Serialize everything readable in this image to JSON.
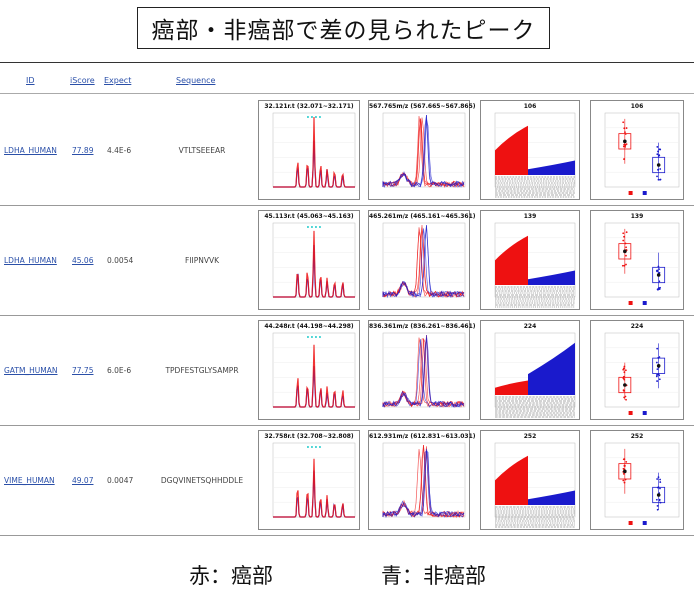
{
  "title": "癌部・非癌部で差の見られたピーク",
  "table": {
    "headers": {
      "id": "ID",
      "score": "iScore",
      "expect": "Expect",
      "sequence": "Sequence"
    }
  },
  "rows": [
    {
      "protein": "LDHA_HUMAN",
      "score": "77.89",
      "expect": "4.4E-6",
      "sequence": "VTLTSEEEAR",
      "panel_titles": [
        "32.121r.t (32.071~32.171)",
        "567.765m/z (567.665~567.865)",
        "106",
        "106"
      ]
    },
    {
      "protein": "LDHA_HUMAN",
      "score": "45.06",
      "expect": "0.0054",
      "sequence": "FIIPNVVK",
      "panel_titles": [
        "45.113r.t (45.063~45.163)",
        "465.261m/z (465.161~465.361)",
        "139",
        "139"
      ]
    },
    {
      "protein": "GATM_HUMAN",
      "score": "77.75",
      "expect": "6.0E-6",
      "sequence": "TPDFESTGLYSAMPR",
      "panel_titles": [
        "44.248r.t (44.198~44.298)",
        "836.361m/z (836.261~836.461)",
        "224",
        "224"
      ]
    },
    {
      "protein": "VIME_HUMAN",
      "score": "49.07",
      "expect": "0.0047",
      "sequence": "DGQVINETSQHHDDLE",
      "panel_titles": [
        "32.758r.t (32.708~32.808)",
        "612.931m/z (612.831~613.031)",
        "252",
        "252"
      ]
    }
  ],
  "legend": {
    "red": "赤：癌部",
    "blue": "青：非癌部"
  },
  "colors": {
    "red": "#ee1111",
    "blue": "#1a1acc",
    "link": "#2a4fa8"
  }
}
